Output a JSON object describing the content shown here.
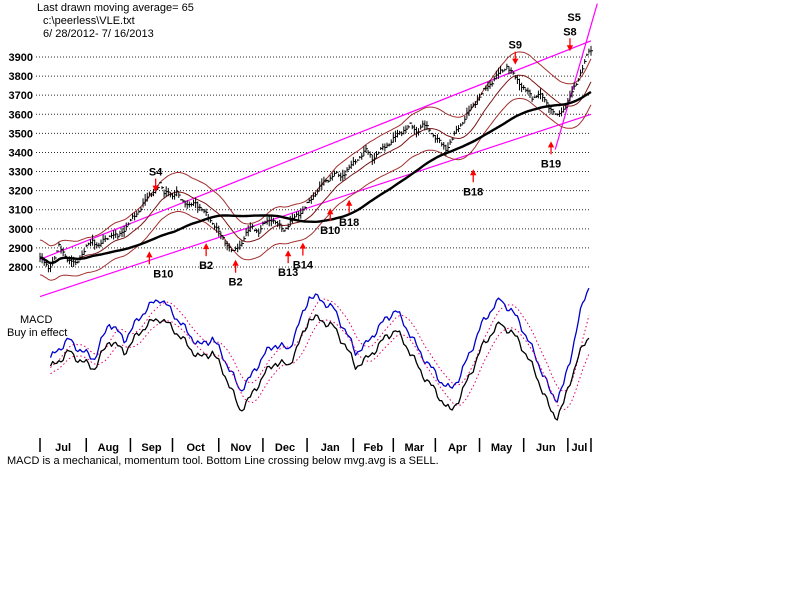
{
  "header": {
    "line1": "Last drawn moving average= 65",
    "line2": "c:\\peerless\\VLE.txt",
    "line3": "6/ 28/2012- 7/ 16/2013"
  },
  "macd_panel": {
    "label": "MACD",
    "status": "Buy in effect"
  },
  "footer": {
    "caption": "MACD is a mechanical, momentum tool. Bottom Line crossing below mvg.avg is a SELL."
  },
  "colors": {
    "grid": "#2b2b2b",
    "price": "#000000",
    "ma_thick": "#000000",
    "ma_thin": "#7a1515",
    "band": "#a33030",
    "trend": "#ff00ff",
    "signal_arrow": "#ff0000",
    "signal_text": "#000000",
    "macd_fast": "#0000cc",
    "macd_slow": "#000000",
    "macd_dotted": "#e0006a"
  },
  "chart_data": [
    {
      "type": "line",
      "subtype": "daily-price-bars",
      "title": "VLE daily prices 6/28/2012 - 7/16/2013 with 65-day moving average, price bands and trend channels",
      "moving_average_period": 65,
      "y_axis": {
        "ticks": [
          3900,
          3800,
          3700,
          3600,
          3500,
          3400,
          3300,
          3200,
          3100,
          3000,
          2900,
          2800
        ],
        "min": 2640,
        "max": 4150,
        "grid": "dotted"
      },
      "x_axis": {
        "labels": [
          "Jul",
          "Aug",
          "Sep",
          "Oct",
          "Nov",
          "Dec",
          "Jan",
          "Feb",
          "Mar",
          "Apr",
          "May",
          "Jun",
          "Jul"
        ],
        "boundaries_day": [
          0,
          22,
          43,
          63,
          85,
          106,
          127,
          149,
          168,
          188,
          209,
          230,
          251,
          262
        ]
      },
      "price_anchors": [
        [
          0,
          2850
        ],
        [
          2,
          2820
        ],
        [
          4,
          2795
        ],
        [
          7,
          2850
        ],
        [
          9,
          2905
        ],
        [
          11,
          2880
        ],
        [
          14,
          2830
        ],
        [
          17,
          2815
        ],
        [
          19,
          2855
        ],
        [
          22,
          2900
        ],
        [
          25,
          2940
        ],
        [
          28,
          2910
        ],
        [
          31,
          2945
        ],
        [
          34,
          2975
        ],
        [
          37,
          2955
        ],
        [
          40,
          3000
        ],
        [
          43,
          3040
        ],
        [
          46,
          3080
        ],
        [
          49,
          3130
        ],
        [
          52,
          3175
        ],
        [
          55,
          3210
        ],
        [
          57,
          3230
        ],
        [
          59,
          3185
        ],
        [
          61,
          3205
        ],
        [
          63,
          3165
        ],
        [
          65,
          3185
        ],
        [
          68,
          3150
        ],
        [
          71,
          3115
        ],
        [
          74,
          3140
        ],
        [
          77,
          3100
        ],
        [
          80,
          3060
        ],
        [
          83,
          3020
        ],
        [
          86,
          2960
        ],
        [
          89,
          2920
        ],
        [
          92,
          2875
        ],
        [
          95,
          2915
        ],
        [
          98,
          2975
        ],
        [
          101,
          3010
        ],
        [
          104,
          2985
        ],
        [
          107,
          3030
        ],
        [
          110,
          3055
        ],
        [
          113,
          3020
        ],
        [
          116,
          2995
        ],
        [
          119,
          3035
        ],
        [
          122,
          3070
        ],
        [
          125,
          3100
        ],
        [
          128,
          3140
        ],
        [
          131,
          3190
        ],
        [
          134,
          3230
        ],
        [
          137,
          3260
        ],
        [
          140,
          3290
        ],
        [
          143,
          3270
        ],
        [
          146,
          3310
        ],
        [
          149,
          3340
        ],
        [
          152,
          3380
        ],
        [
          155,
          3410
        ],
        [
          158,
          3370
        ],
        [
          161,
          3400
        ],
        [
          164,
          3430
        ],
        [
          167,
          3460
        ],
        [
          170,
          3490
        ],
        [
          173,
          3520
        ],
        [
          176,
          3540
        ],
        [
          179,
          3510
        ],
        [
          182,
          3545
        ],
        [
          185,
          3520
        ],
        [
          188,
          3480
        ],
        [
          191,
          3440
        ],
        [
          193,
          3420
        ],
        [
          196,
          3470
        ],
        [
          199,
          3530
        ],
        [
          202,
          3580
        ],
        [
          205,
          3630
        ],
        [
          208,
          3680
        ],
        [
          211,
          3720
        ],
        [
          214,
          3760
        ],
        [
          217,
          3800
        ],
        [
          220,
          3830
        ],
        [
          222,
          3855
        ],
        [
          225,
          3805
        ],
        [
          228,
          3765
        ],
        [
          231,
          3725
        ],
        [
          234,
          3685
        ],
        [
          237,
          3710
        ],
        [
          240,
          3670
        ],
        [
          243,
          3630
        ],
        [
          246,
          3585
        ],
        [
          249,
          3630
        ],
        [
          252,
          3690
        ],
        [
          255,
          3760
        ],
        [
          257,
          3820
        ],
        [
          259,
          3870
        ],
        [
          261,
          3930
        ]
      ],
      "trendlines": [
        {
          "name": "channel-lower",
          "day1": 0,
          "price1": 2645,
          "day2": 262,
          "price2": 3600
        },
        {
          "name": "channel-upper",
          "day1": 0,
          "price1": 2840,
          "day2": 262,
          "price2": 3985
        },
        {
          "name": "breakout-steep",
          "day1": 245,
          "price1": 3415,
          "day2": 265,
          "price2": 4180
        }
      ],
      "signals": [
        {
          "label": "S4",
          "day": 55,
          "dir": "down",
          "tip_price": 3195
        },
        {
          "label": "B10",
          "day": 52,
          "dir": "up",
          "tip_price": 2882,
          "dx": 14
        },
        {
          "label": "B2",
          "day": 79,
          "dir": "up",
          "tip_price": 2925
        },
        {
          "label": "B2",
          "day": 93,
          "dir": "up",
          "tip_price": 2838
        },
        {
          "label": "B13",
          "day": 118,
          "dir": "up",
          "tip_price": 2888
        },
        {
          "label": "B14",
          "day": 125,
          "dir": "up",
          "tip_price": 2928
        },
        {
          "label": "B10",
          "day": 138,
          "dir": "up",
          "tip_price": 3108
        },
        {
          "label": "B18",
          "day": 147,
          "dir": "up",
          "tip_price": 3152
        },
        {
          "label": "B18",
          "day": 206,
          "dir": "up",
          "tip_price": 3312
        },
        {
          "label": "B19",
          "day": 243,
          "dir": "up",
          "tip_price": 3458
        },
        {
          "label": "S9",
          "day": 226,
          "dir": "down",
          "tip_price": 3860
        },
        {
          "label": "S8",
          "day": 252,
          "dir": "down",
          "tip_price": 3930
        },
        {
          "label": "S5",
          "day": 254,
          "dir": "none",
          "tip_price": 4105
        }
      ]
    },
    {
      "type": "line",
      "title": "MACD (unlabeled scale, values are panel y-pixels)",
      "note": "dotted pink lines are moving averages of the two MACD lines",
      "series": [
        {
          "name": "macd-fast-blue",
          "color": "#0000cc",
          "points": [
            [
              2,
              370
            ],
            [
              8,
              350
            ],
            [
              14,
              340
            ],
            [
              20,
              352
            ],
            [
              26,
              358
            ],
            [
              33,
              322
            ],
            [
              40,
              340
            ],
            [
              50,
              310
            ],
            [
              57,
              298
            ],
            [
              64,
              315
            ],
            [
              70,
              332
            ],
            [
              76,
              346
            ],
            [
              82,
              338
            ],
            [
              88,
              360
            ],
            [
              95,
              390
            ],
            [
              100,
              378
            ],
            [
              106,
              356
            ],
            [
              112,
              344
            ],
            [
              118,
              350
            ],
            [
              124,
              320
            ],
            [
              128,
              296
            ],
            [
              134,
              300
            ],
            [
              140,
              310
            ],
            [
              145,
              330
            ],
            [
              150,
              352
            ],
            [
              155,
              345
            ],
            [
              160,
              330
            ],
            [
              165,
              318
            ],
            [
              169,
              310
            ],
            [
              175,
              330
            ],
            [
              180,
              350
            ],
            [
              186,
              368
            ],
            [
              191,
              382
            ],
            [
              195,
              390
            ],
            [
              200,
              375
            ],
            [
              205,
              350
            ],
            [
              210,
              325
            ],
            [
              215,
              308
            ],
            [
              219,
              300
            ],
            [
              223,
              308
            ],
            [
              228,
              322
            ],
            [
              232,
              340
            ],
            [
              236,
              358
            ],
            [
              240,
              378
            ],
            [
              243,
              394
            ],
            [
              246,
              398
            ],
            [
              249,
              385
            ],
            [
              252,
              360
            ],
            [
              255,
              330
            ],
            [
              258,
              305
            ],
            [
              261,
              286
            ]
          ]
        },
        {
          "name": "macd-slow-black",
          "color": "#000000",
          "points": [
            [
              2,
              375
            ],
            [
              8,
              362
            ],
            [
              14,
              352
            ],
            [
              20,
              362
            ],
            [
              26,
              368
            ],
            [
              33,
              340
            ],
            [
              40,
              352
            ],
            [
              50,
              326
            ],
            [
              57,
              318
            ],
            [
              64,
              330
            ],
            [
              70,
              345
            ],
            [
              76,
              358
            ],
            [
              82,
              352
            ],
            [
              88,
              375
            ],
            [
              95,
              410
            ],
            [
              100,
              398
            ],
            [
              106,
              376
            ],
            [
              112,
              362
            ],
            [
              118,
              366
            ],
            [
              124,
              340
            ],
            [
              128,
              318
            ],
            [
              134,
              320
            ],
            [
              140,
              328
            ],
            [
              145,
              345
            ],
            [
              150,
              366
            ],
            [
              155,
              360
            ],
            [
              160,
              348
            ],
            [
              165,
              336
            ],
            [
              169,
              330
            ],
            [
              175,
              348
            ],
            [
              180,
              368
            ],
            [
              186,
              386
            ],
            [
              191,
              400
            ],
            [
              195,
              412
            ],
            [
              200,
              396
            ],
            [
              205,
              372
            ],
            [
              210,
              348
            ],
            [
              215,
              332
            ],
            [
              219,
              324
            ],
            [
              223,
              330
            ],
            [
              228,
              342
            ],
            [
              232,
              358
            ],
            [
              236,
              375
            ],
            [
              240,
              396
            ],
            [
              243,
              412
            ],
            [
              246,
              416
            ],
            [
              249,
              404
            ],
            [
              252,
              382
            ],
            [
              255,
              362
            ],
            [
              258,
              348
            ],
            [
              261,
              336
            ]
          ]
        }
      ]
    }
  ]
}
